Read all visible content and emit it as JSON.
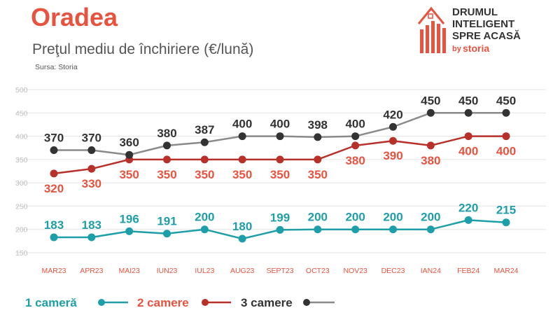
{
  "header": {
    "city": "Oradea",
    "subtitle": "Preţul mediu de închiriere (€/lună)",
    "source": "Sursa: Storia"
  },
  "logo": {
    "line1": "DRUMUL",
    "line2": "INTELIGENT",
    "line3": "SPRE ACASĂ",
    "by": "by",
    "brand": "storia"
  },
  "colors": {
    "accent": "#e8533f",
    "teal": "#1e9ea8",
    "red": "#b8302a",
    "gray": "#8a8a8a",
    "dark": "#333333",
    "grid": "#e3e3e3",
    "axis_text": "#bdbdbd"
  },
  "chart_data": {
    "type": "line",
    "categories": [
      "MAR23",
      "APR23",
      "MAI23",
      "IUN23",
      "IUL23",
      "AUG23",
      "SEPT23",
      "OCT23",
      "NOV23",
      "DEC23",
      "IAN24",
      "FEB24",
      "MAR24"
    ],
    "ylim": [
      150,
      500
    ],
    "yticks": [
      150,
      200,
      250,
      300,
      350,
      400,
      450,
      500
    ],
    "grid": true,
    "legend_position": "bottom-left",
    "series": [
      {
        "name": "1 cameră",
        "color": "#1e9ea8",
        "label_color": "#1e9ea8",
        "label_position": "above",
        "values": [
          183,
          183,
          196,
          191,
          200,
          180,
          199,
          200,
          200,
          200,
          200,
          220,
          215
        ]
      },
      {
        "name": "2 camere",
        "color": "#b8302a",
        "label_color": "#e8533f",
        "label_position": "below",
        "values": [
          320,
          330,
          350,
          350,
          350,
          350,
          350,
          350,
          380,
          390,
          380,
          400,
          400
        ]
      },
      {
        "name": "3 camere",
        "color": "#8a8a8a",
        "label_color": "#333333",
        "label_position": "above",
        "values": [
          370,
          370,
          360,
          380,
          387,
          400,
          400,
          398,
          400,
          420,
          450,
          450,
          450
        ]
      }
    ]
  }
}
